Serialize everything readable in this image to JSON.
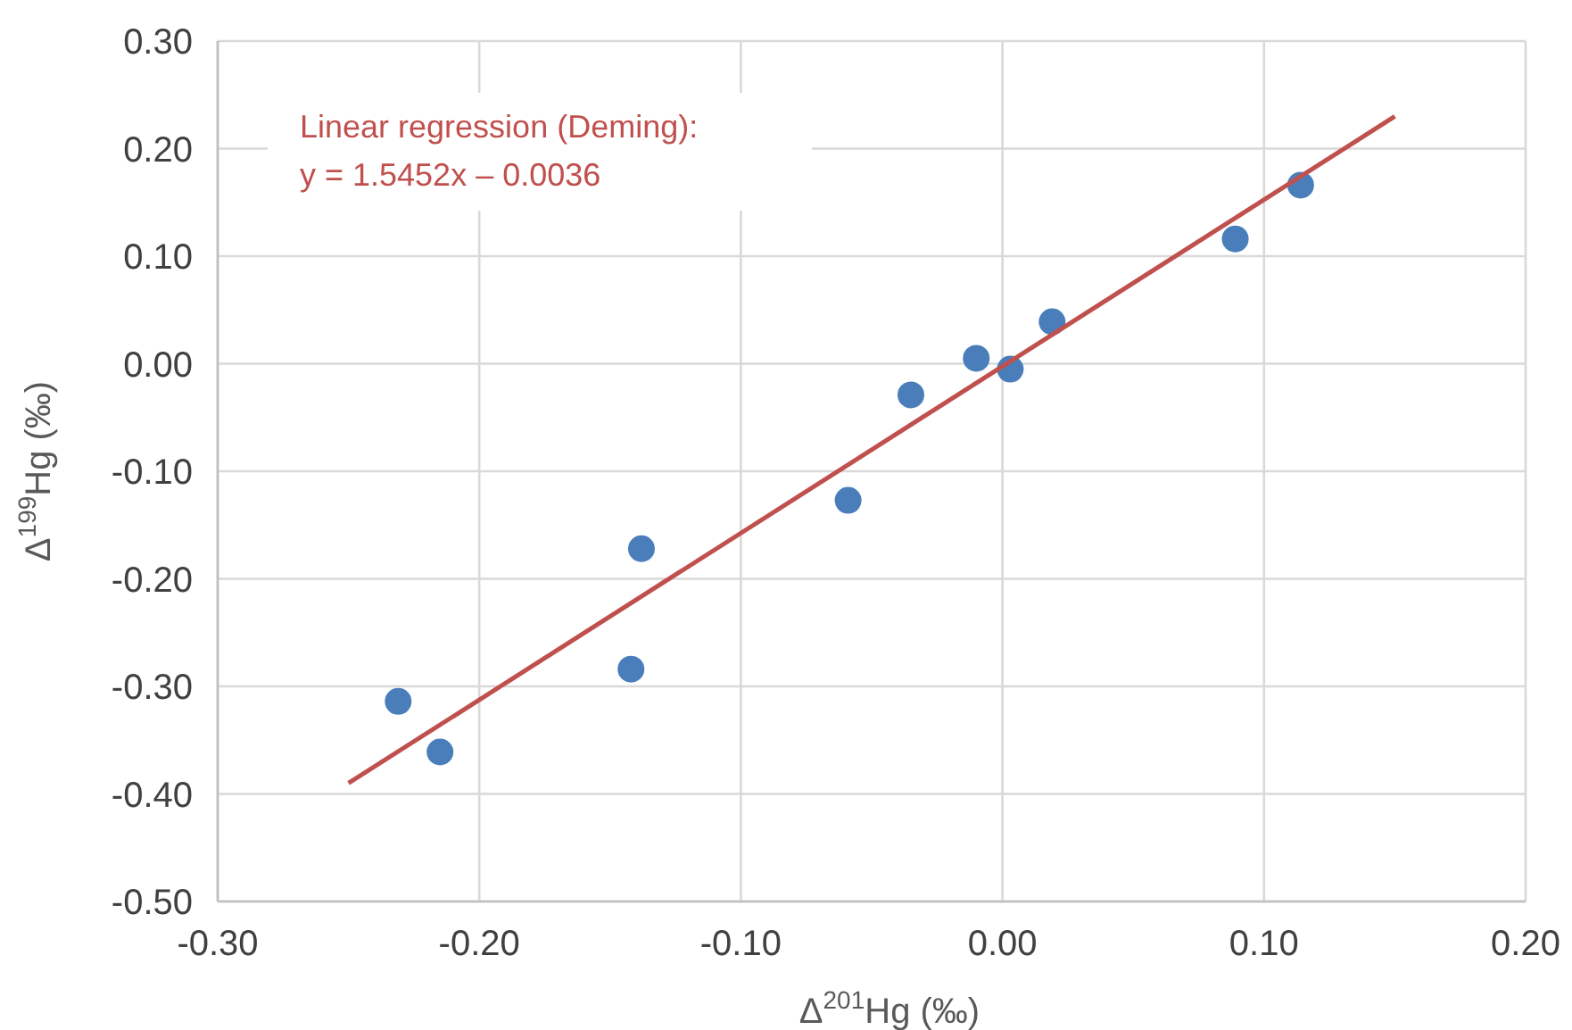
{
  "chart_data": {
    "type": "scatter",
    "xlabel": "Δ$^{201}$Hg (‰)",
    "ylabel": "Δ$^{199}$Hg (‰)",
    "annotations": [
      "Linear regression (Deming):",
      "y = 1.5452x – 0.0036"
    ],
    "xlim": [
      -0.3,
      0.2
    ],
    "xticks": [
      {
        "value": -0.3,
        "label": "-0.30"
      },
      {
        "value": -0.2,
        "label": "-0.20"
      },
      {
        "value": -0.1,
        "label": "-0.10"
      },
      {
        "value": 0,
        "label": "0.00"
      },
      {
        "value": 0.1,
        "label": "0.10"
      },
      {
        "value": 0.2,
        "label": "0.20"
      }
    ],
    "ylim": [
      -0.5,
      0.3
    ],
    "yticks": [
      {
        "value": -0.5,
        "label": "-0.50"
      },
      {
        "value": -0.4,
        "label": "-0.40"
      },
      {
        "value": -0.3,
        "label": "-0.30"
      },
      {
        "value": -0.2,
        "label": "-0.20"
      },
      {
        "value": -0.1,
        "label": "-0.10"
      },
      {
        "value": 0,
        "label": "0.00"
      },
      {
        "value": 0.1,
        "label": "0.10"
      },
      {
        "value": 0.2,
        "label": "0.20"
      },
      {
        "value": 0.3,
        "label": "0.30"
      }
    ],
    "grid": true,
    "series": [
      {
        "marker": "circle",
        "color": "#4a7ebb",
        "x": [
          -0.231,
          -0.215,
          -0.142,
          -0.138,
          -0.059,
          -0.035,
          -0.01,
          0.003,
          0.019,
          0.089,
          0.114
        ],
        "values": [
          -0.314,
          -0.361,
          -0.284,
          -0.172,
          -0.127,
          -0.029,
          0.005,
          -0.005,
          0.039,
          0.116,
          0.166
        ]
      },
      {
        "type": "line",
        "marker": "none",
        "color": "#c0504d",
        "line_style": "solid",
        "x": [
          -0.25,
          0.15
        ],
        "values": [
          -0.39,
          0.23
        ]
      }
    ]
  }
}
